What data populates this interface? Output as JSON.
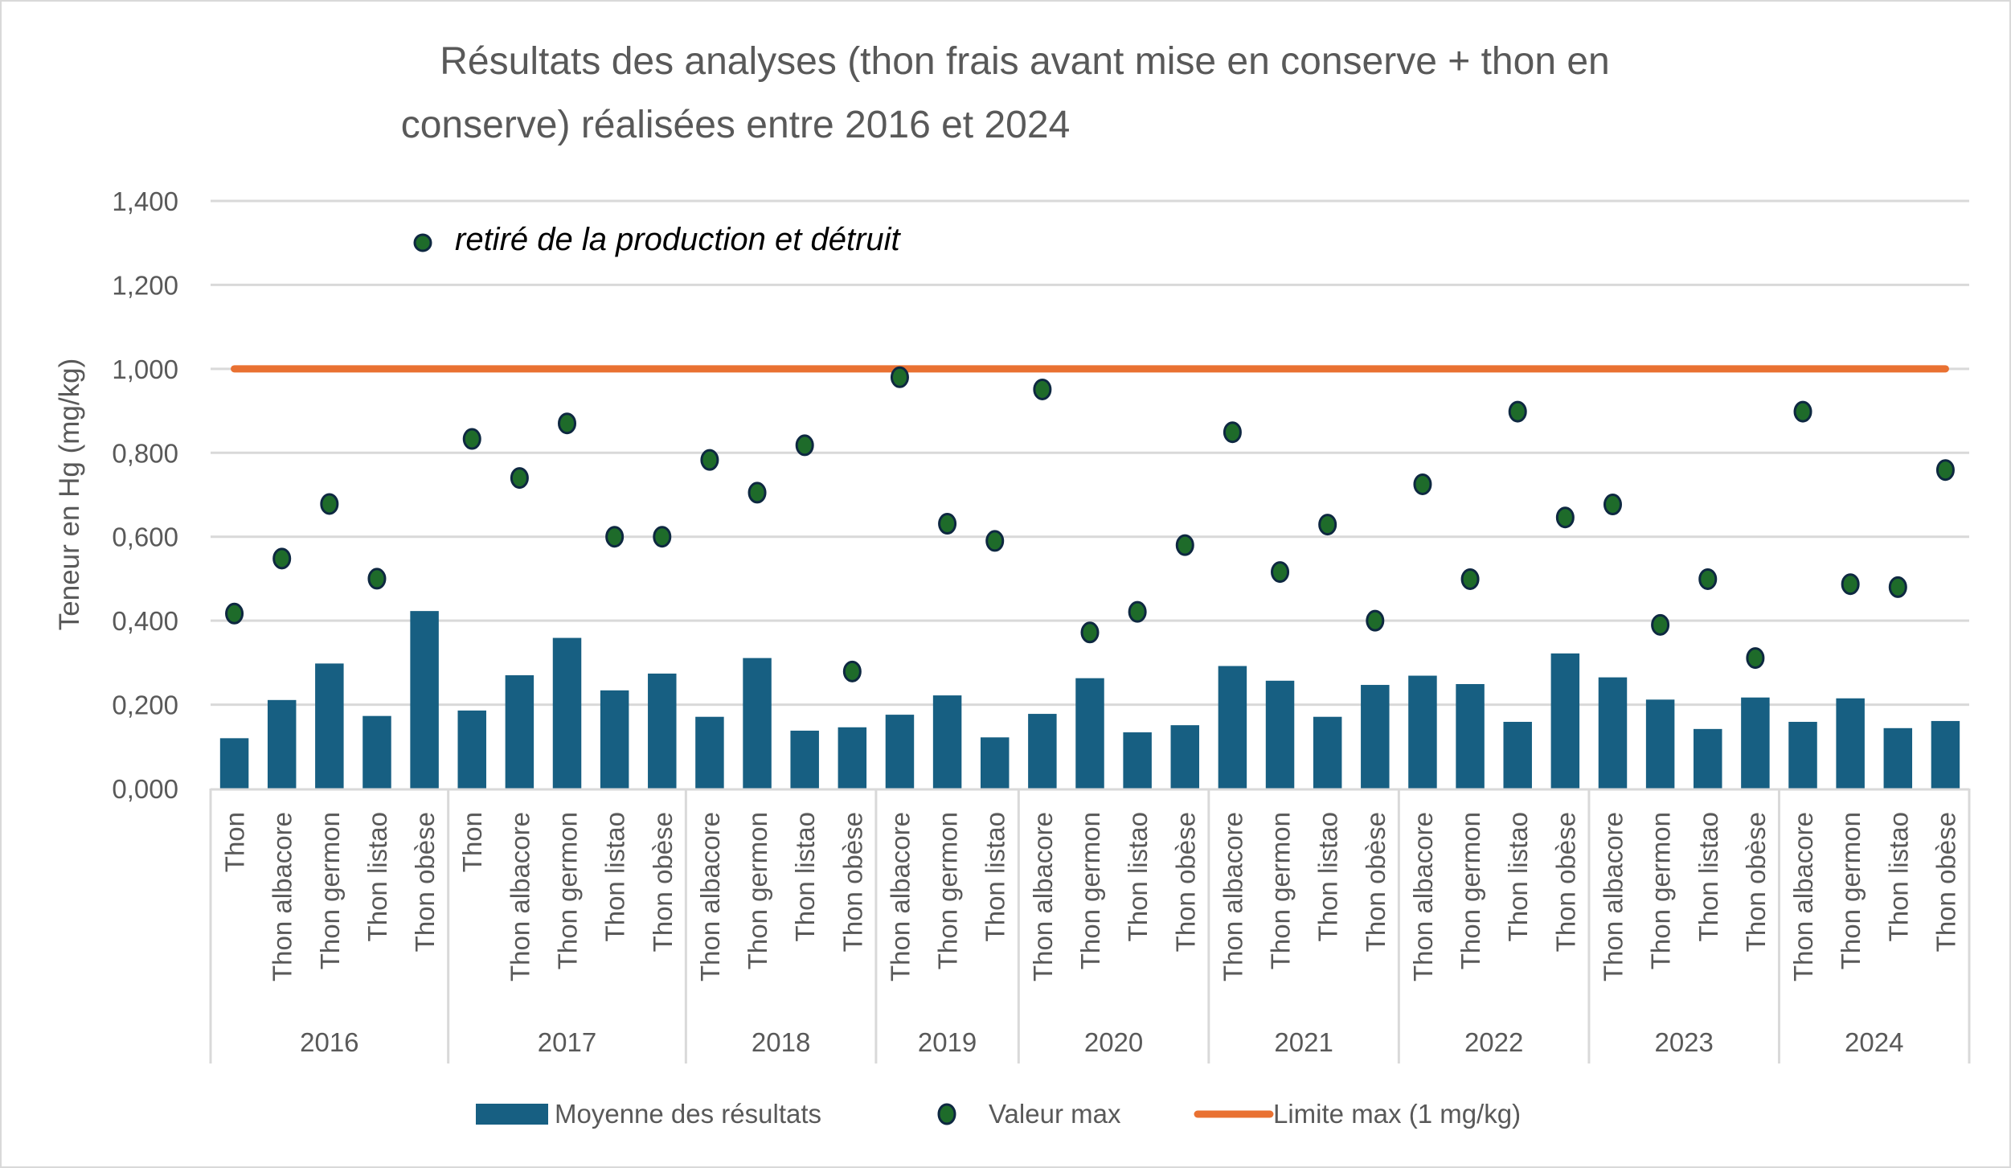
{
  "chart_data": {
    "type": "bar",
    "title_lines": [
      "Résultats des analyses (thon frais avant mise en conserve + thon en",
      "conserve) réalisées entre 2016 et 2024"
    ],
    "ylabel": "Teneur en Hg (mg/kg)",
    "xlabel": "",
    "ylim": [
      0,
      1.4
    ],
    "yticks": [
      0,
      0.2,
      0.4,
      0.6,
      0.8,
      1.0,
      1.2,
      1.4
    ],
    "ytick_labels": [
      "0,000",
      "0,200",
      "0,400",
      "0,600",
      "0,800",
      "1,000",
      "1,200",
      "1,400"
    ],
    "grid": true,
    "legend_position": "bottom",
    "groups": [
      {
        "year": "2016",
        "categories": [
          "Thon",
          "Thon albacore",
          "Thon germon",
          "Thon listao",
          "Thon obèse"
        ]
      },
      {
        "year": "2017",
        "categories": [
          "Thon",
          "Thon albacore",
          "Thon germon",
          "Thon listao",
          "Thon obèse"
        ]
      },
      {
        "year": "2018",
        "categories": [
          "Thon albacore",
          "Thon germon",
          "Thon listao",
          "Thon obèse"
        ]
      },
      {
        "year": "2019",
        "categories": [
          "Thon albacore",
          "Thon germon",
          "Thon listao"
        ]
      },
      {
        "year": "2020",
        "categories": [
          "Thon albacore",
          "Thon germon",
          "Thon listao",
          "Thon obèse"
        ]
      },
      {
        "year": "2021",
        "categories": [
          "Thon albacore",
          "Thon germon",
          "Thon listao",
          "Thon obèse"
        ]
      },
      {
        "year": "2022",
        "categories": [
          "Thon albacore",
          "Thon germon",
          "Thon listao",
          "Thon obèse"
        ]
      },
      {
        "year": "2023",
        "categories": [
          "Thon albacore",
          "Thon germon",
          "Thon listao",
          "Thon obèse"
        ]
      },
      {
        "year": "2024",
        "categories": [
          "Thon albacore",
          "Thon germon",
          "Thon listao",
          "Thon obèse"
        ]
      }
    ],
    "series": [
      {
        "name": "Moyenne des résultats",
        "type": "bar",
        "color": "#175f82",
        "values": [
          0.12,
          0.211,
          0.298,
          0.173,
          0.423,
          0.186,
          0.27,
          0.359,
          0.234,
          0.274,
          0.171,
          0.311,
          0.138,
          0.146,
          0.176,
          0.222,
          0.122,
          0.178,
          0.263,
          0.134,
          0.151,
          0.292,
          0.257,
          0.171,
          0.247,
          0.269,
          0.249,
          0.159,
          0.322,
          0.265,
          0.212,
          0.142,
          0.217,
          0.159,
          0.215,
          0.144,
          0.161
        ]
      },
      {
        "name": "Valeur max",
        "type": "scatter",
        "color": "#1e6b2a",
        "edge_color": "#0e2841",
        "values": [
          0.417,
          0.548,
          0.678,
          0.5,
          null,
          0.833,
          0.74,
          0.87,
          0.6,
          0.6,
          0.783,
          0.705,
          0.818,
          0.279,
          0.98,
          0.631,
          0.59,
          0.951,
          0.372,
          0.421,
          0.58,
          0.849,
          0.516,
          0.629,
          0.4,
          0.725,
          0.499,
          0.898,
          0.646,
          0.677,
          0.39,
          0.499,
          0.311,
          0.898,
          0.487,
          0.48,
          0.759
        ]
      },
      {
        "name": "Limite max (1 mg/kg)",
        "type": "line",
        "color": "#e97132",
        "value": 1.0
      }
    ],
    "annotations": [
      {
        "text": "retiré de la production et détruit",
        "marker": "Valeur max",
        "y": 1.3
      }
    ]
  }
}
